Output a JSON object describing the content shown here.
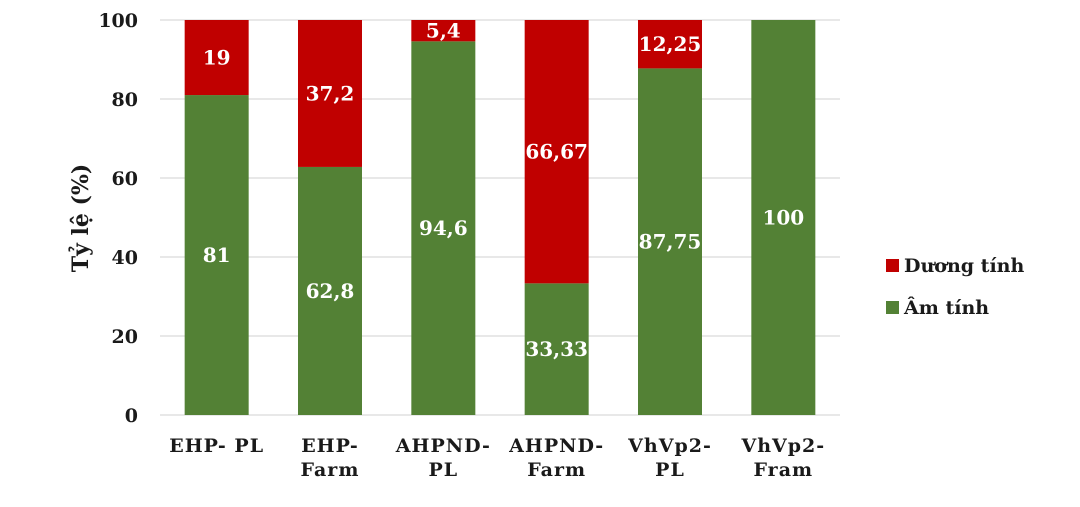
{
  "chart_data": {
    "type": "bar",
    "stacked": true,
    "categories": [
      [
        "EHP- PL"
      ],
      [
        "EHP-",
        "Farm"
      ],
      [
        "AHPND-",
        "PL"
      ],
      [
        "AHPND-",
        "Farm"
      ],
      [
        "VhVp2-",
        "PL"
      ],
      [
        "VhVp2-",
        "Fram"
      ]
    ],
    "series": [
      {
        "name": "Âm tính",
        "color": "#538135",
        "values": [
          81,
          62.8,
          94.6,
          33.33,
          87.75,
          100
        ],
        "labels": [
          "81",
          "62,8",
          "94,6",
          "33,33",
          "87,75",
          "100"
        ]
      },
      {
        "name": "Dương tính",
        "color": "#c00000",
        "values": [
          19,
          37.2,
          5.4,
          66.67,
          12.25,
          0
        ],
        "labels": [
          "19",
          "37,2",
          "5,4",
          "66,67",
          "12,25",
          ""
        ]
      }
    ],
    "ylabel": "Tỷ lệ  (%)",
    "xlabel": "",
    "ylim": [
      0,
      100
    ],
    "yticks": [
      0,
      20,
      40,
      60,
      80,
      100
    ],
    "grid": true,
    "legend": {
      "position": "right",
      "order": [
        "Dương tính",
        "Âm tính"
      ]
    }
  }
}
